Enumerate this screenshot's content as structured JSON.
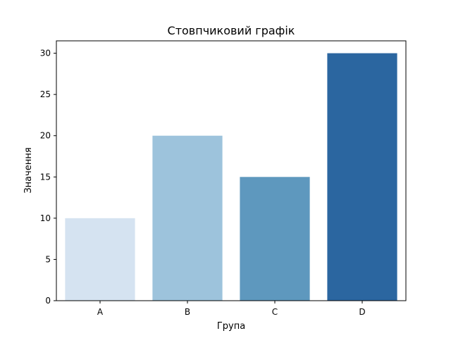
{
  "chart_data": {
    "type": "bar",
    "title": "Стовпчиковий графік",
    "xlabel": "Група",
    "ylabel": "Значення",
    "categories": [
      "A",
      "B",
      "C",
      "D"
    ],
    "values": [
      10,
      20,
      15,
      30
    ],
    "bar_colors": [
      "#d5e3f1",
      "#9dc3dc",
      "#5e98be",
      "#2b66a0"
    ],
    "ylim": [
      0,
      31.5
    ],
    "yticks": [
      0,
      5,
      10,
      15,
      20,
      25,
      30
    ],
    "grid": false,
    "legend": "none"
  }
}
